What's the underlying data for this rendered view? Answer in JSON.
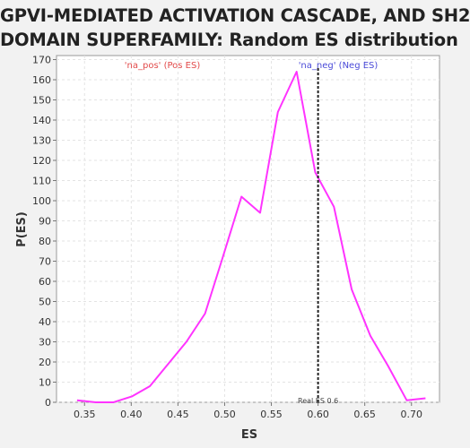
{
  "chart_data": {
    "type": "line",
    "title_lines": [
      "GPVI-MEDIATED ACTIVATION CASCADE, AND SH2",
      "DOMAIN SUPERFAMILY: Random ES distribution"
    ],
    "xlabel": "ES",
    "ylabel": "P(ES)",
    "xlim": [
      0.32,
      0.73
    ],
    "ylim": [
      0,
      172
    ],
    "xticks": [
      0.35,
      0.4,
      0.45,
      0.5,
      0.55,
      0.6,
      0.65,
      0.7
    ],
    "yticks": [
      0,
      10,
      20,
      30,
      40,
      50,
      60,
      70,
      80,
      90,
      100,
      110,
      120,
      130,
      140,
      150,
      160,
      170
    ],
    "grid": true,
    "series": [
      {
        "color": "#ff33ff",
        "x": [
          0.342,
          0.362,
          0.381,
          0.401,
          0.42,
          0.459,
          0.479,
          0.498,
          0.518,
          0.538,
          0.557,
          0.577,
          0.597,
          0.617,
          0.636,
          0.656,
          0.675,
          0.695,
          0.715
        ],
        "y": [
          1,
          0,
          0,
          3,
          8,
          30,
          44,
          72,
          102,
          94,
          144,
          164,
          114,
          97,
          56,
          33,
          18,
          1,
          2
        ]
      }
    ],
    "annotations": [
      {
        "text": "'na_pos' (Pos ES)",
        "color": "#e24a4a"
      },
      {
        "text": "'na_neg' (Neg ES)",
        "color": "#4a4ad8"
      },
      {
        "text": "Real ES 0.6",
        "color": "#444444"
      }
    ],
    "real_es": 0.6
  }
}
